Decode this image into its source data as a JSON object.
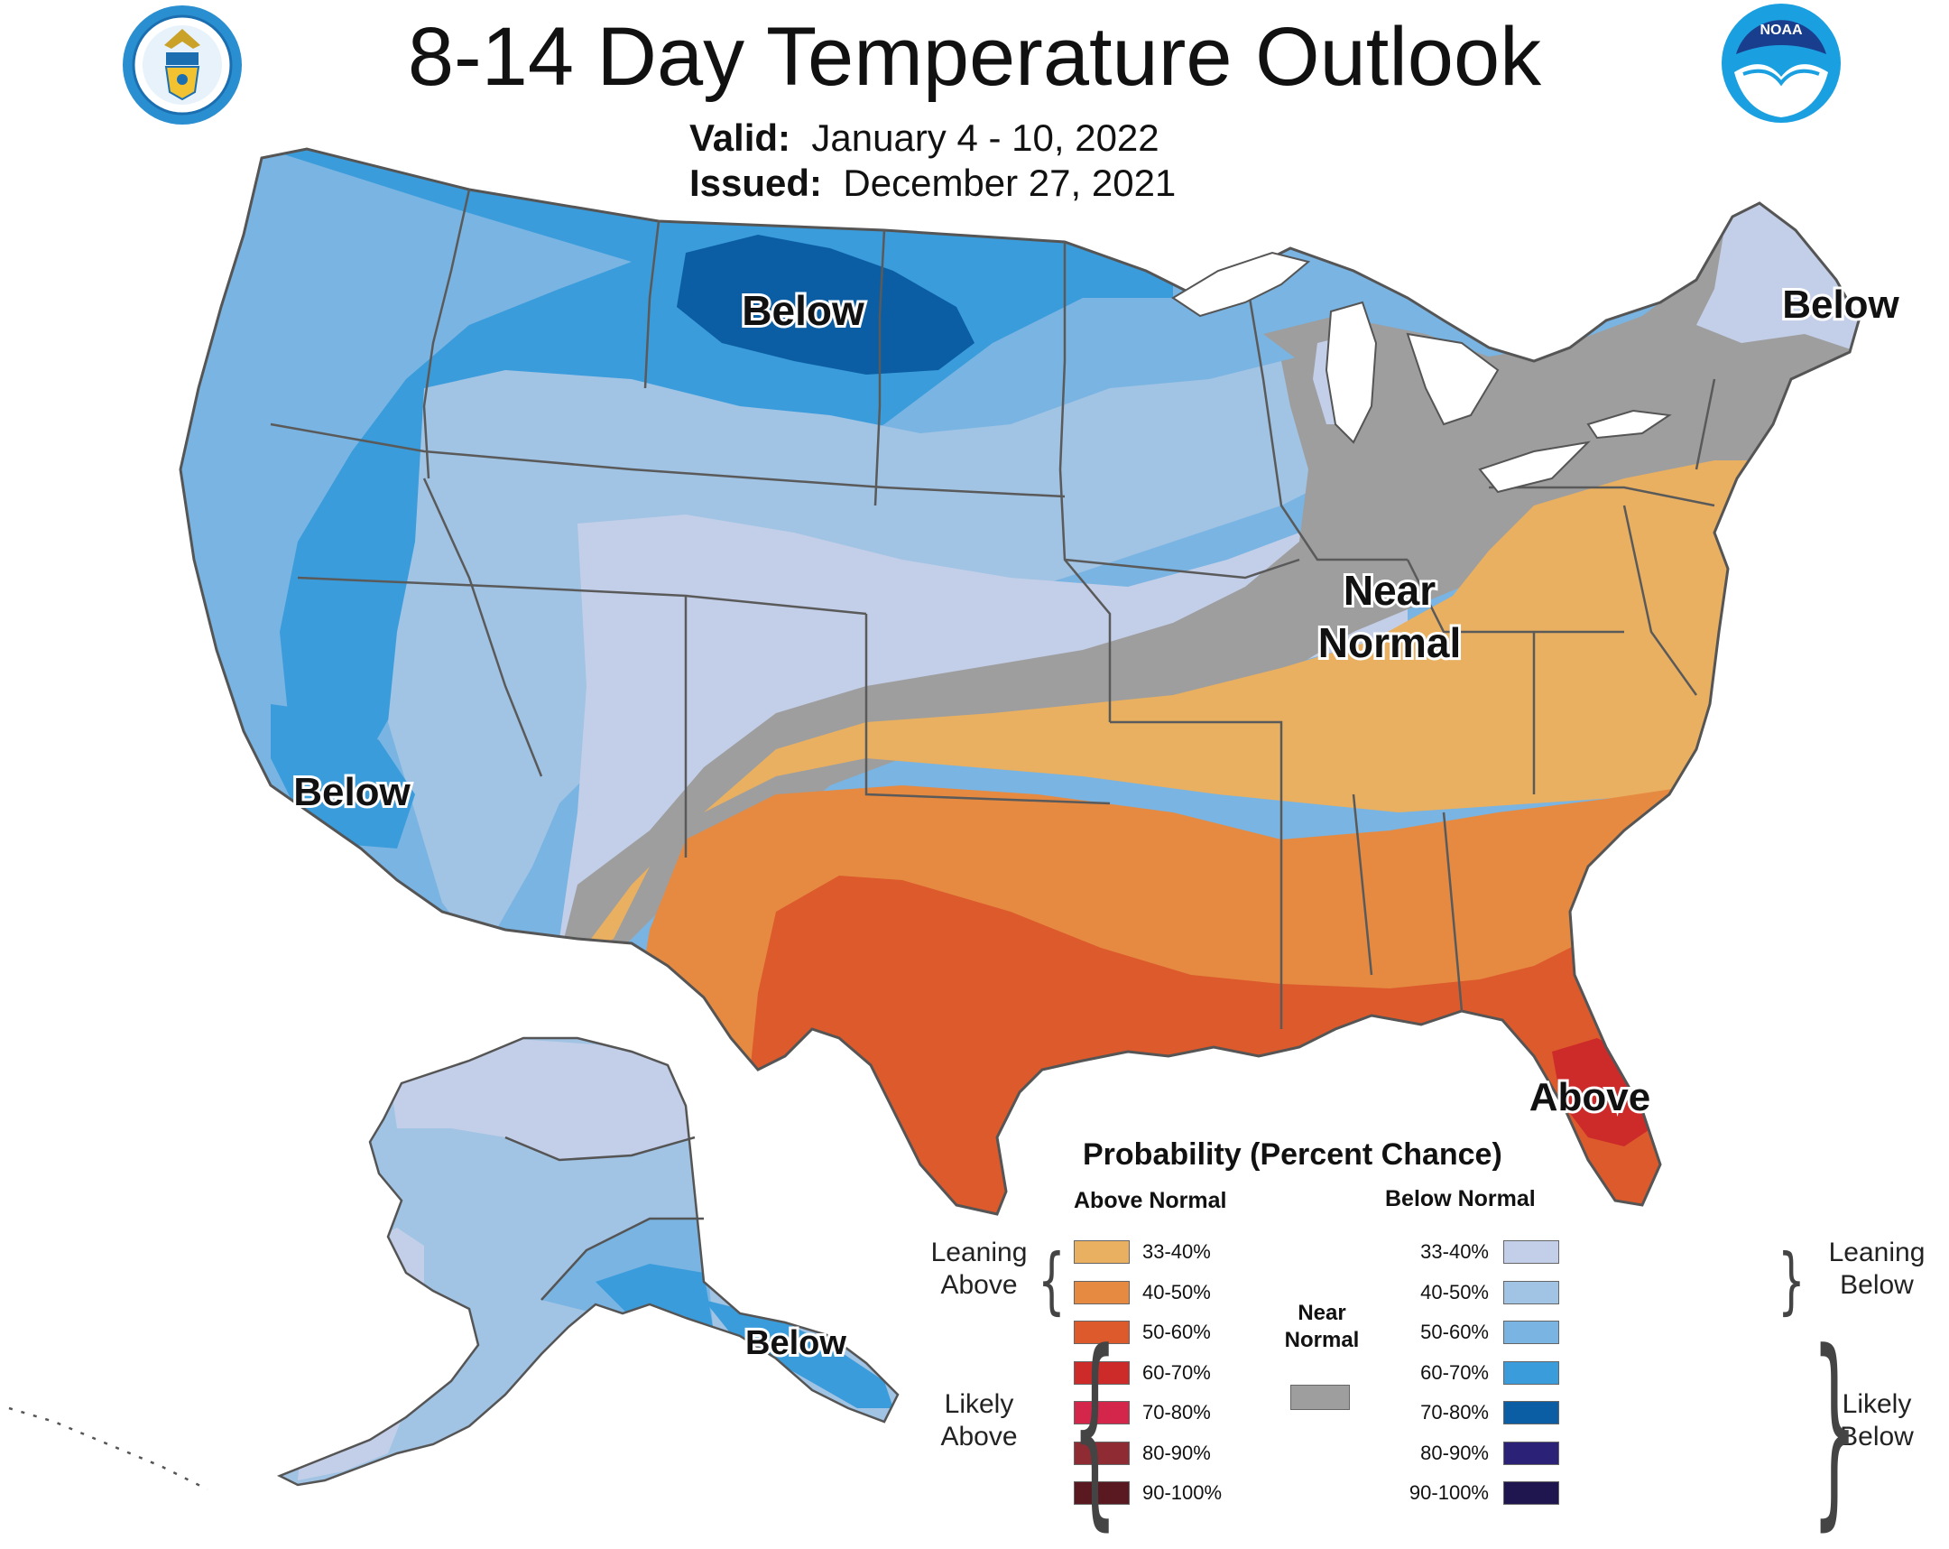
{
  "header": {
    "title": "8-14 Day Temperature Outlook",
    "valid_label": "Valid:",
    "valid_value": "January 4 - 10, 2022",
    "issued_label": "Issued:",
    "issued_value": "December 27, 2021",
    "logo_left": "department-of-commerce-seal",
    "logo_right": "noaa-logo",
    "noaa_text": "NOAA"
  },
  "map": {
    "region_labels": {
      "north_plains": "Below",
      "northeast": "Below",
      "california": "Below",
      "ohio_valley_1": "Near",
      "ohio_valley_2": "Normal",
      "florida": "Above",
      "alaska": "Below"
    }
  },
  "legend": {
    "title": "Probability (Percent Chance)",
    "above_header": "Above Normal",
    "below_header": "Below Normal",
    "leaning_above": [
      "Leaning",
      "Above"
    ],
    "likely_above": [
      "Likely",
      "Above"
    ],
    "leaning_below": [
      "Leaning",
      "Below"
    ],
    "likely_below": [
      "Likely",
      "Below"
    ],
    "near_normal": [
      "Near",
      "Normal"
    ],
    "near_normal_color": "#9e9e9e",
    "above": [
      {
        "range": "33-40%",
        "color": "#e9b061"
      },
      {
        "range": "40-50%",
        "color": "#e68a42"
      },
      {
        "range": "50-60%",
        "color": "#dc5a2c"
      },
      {
        "range": "60-70%",
        "color": "#cd2a2a"
      },
      {
        "range": "70-80%",
        "color": "#d4264a"
      },
      {
        "range": "80-90%",
        "color": "#8f2b33"
      },
      {
        "range": "90-100%",
        "color": "#5a1820"
      }
    ],
    "below": [
      {
        "range": "33-40%",
        "color": "#c3cfe8"
      },
      {
        "range": "40-50%",
        "color": "#a1c3e4"
      },
      {
        "range": "50-60%",
        "color": "#79b4e2"
      },
      {
        "range": "60-70%",
        "color": "#3a9cdb"
      },
      {
        "range": "70-80%",
        "color": "#0b5ea4"
      },
      {
        "range": "80-90%",
        "color": "#2b2177"
      },
      {
        "range": "90-100%",
        "color": "#1f1650"
      }
    ]
  }
}
